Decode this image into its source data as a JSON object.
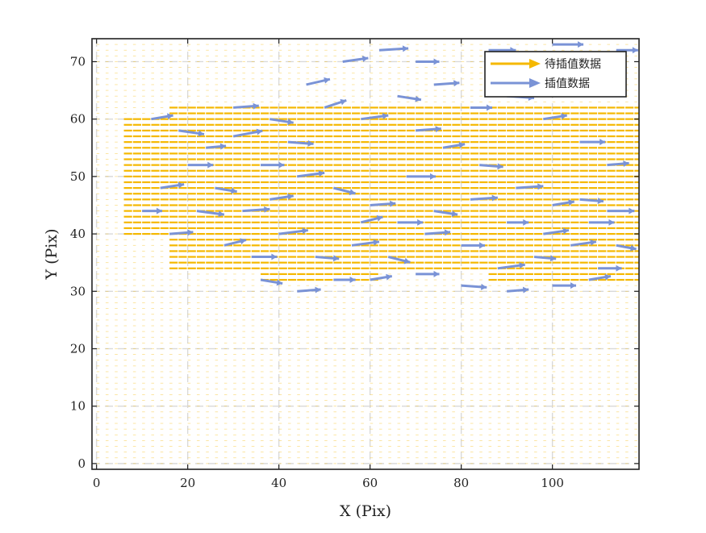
{
  "chart_data": {
    "type": "quiver",
    "xlabel": "X (Pix)",
    "ylabel": "Y (Pix)",
    "xlim": [
      -1,
      119
    ],
    "ylim": [
      -1,
      74
    ],
    "xticks": [
      0,
      20,
      40,
      60,
      80,
      100
    ],
    "yticks": [
      0,
      10,
      20,
      30,
      40,
      50,
      60,
      70
    ],
    "grid": true,
    "legend_position": "top-right",
    "series": [
      {
        "name": "待插值数据",
        "color": "#F5B800",
        "description_region": "dense horizontal field; strong rightward vectors for y≈32-62, x≈6-118; faint short vectors elsewhere",
        "dense_region": {
          "x": [
            6,
            118
          ],
          "y": [
            32,
            62
          ]
        },
        "dense_u": 1.0,
        "faint_u": 0.35
      },
      {
        "name": "插值数据",
        "color": "#7A93D6",
        "sample_vectors": [
          [
            12,
            60,
            1.2,
            0.2
          ],
          [
            18,
            58,
            1.4,
            -0.2
          ],
          [
            24,
            55,
            1.1,
            0.1
          ],
          [
            30,
            57,
            1.6,
            0.3
          ],
          [
            36,
            52,
            1.3,
            0.0
          ],
          [
            44,
            50,
            1.5,
            0.2
          ],
          [
            52,
            48,
            1.2,
            -0.3
          ],
          [
            60,
            45,
            1.4,
            0.1
          ],
          [
            68,
            50,
            1.6,
            0.0
          ],
          [
            76,
            55,
            1.2,
            0.2
          ],
          [
            84,
            52,
            1.3,
            -0.1
          ],
          [
            92,
            48,
            1.5,
            0.1
          ],
          [
            100,
            45,
            1.2,
            0.2
          ],
          [
            108,
            42,
            1.4,
            0.0
          ],
          [
            114,
            38,
            1.1,
            -0.2
          ],
          [
            16,
            40,
            1.3,
            0.1
          ],
          [
            22,
            44,
            1.5,
            -0.2
          ],
          [
            28,
            38,
            1.2,
            0.3
          ],
          [
            34,
            36,
            1.4,
            0.0
          ],
          [
            40,
            40,
            1.6,
            0.2
          ],
          [
            48,
            36,
            1.3,
            -0.1
          ],
          [
            56,
            38,
            1.5,
            0.2
          ],
          [
            64,
            36,
            1.2,
            -0.3
          ],
          [
            72,
            40,
            1.4,
            0.1
          ],
          [
            80,
            38,
            1.3,
            0.0
          ],
          [
            88,
            34,
            1.5,
            0.2
          ],
          [
            96,
            36,
            1.2,
            -0.1
          ],
          [
            104,
            38,
            1.4,
            0.2
          ],
          [
            110,
            34,
            1.3,
            0.0
          ],
          [
            50,
            62,
            1.2,
            0.4
          ],
          [
            58,
            60,
            1.5,
            0.2
          ],
          [
            66,
            64,
            1.3,
            -0.2
          ],
          [
            74,
            66,
            1.4,
            0.1
          ],
          [
            82,
            62,
            1.2,
            0.0
          ],
          [
            90,
            64,
            1.5,
            -0.1
          ],
          [
            98,
            60,
            1.3,
            0.2
          ],
          [
            106,
            56,
            1.4,
            0.0
          ],
          [
            112,
            52,
            1.2,
            0.1
          ],
          [
            46,
            66,
            1.3,
            0.3
          ],
          [
            54,
            70,
            1.4,
            0.2
          ],
          [
            62,
            72,
            1.6,
            0.1
          ],
          [
            70,
            70,
            1.3,
            0.0
          ],
          [
            86,
            72,
            1.5,
            0.0
          ],
          [
            100,
            73,
            1.7,
            0.0
          ],
          [
            114,
            72,
            1.2,
            0.0
          ],
          [
            20,
            52,
            1.4,
            0.0
          ],
          [
            26,
            48,
            1.2,
            -0.2
          ],
          [
            32,
            44,
            1.5,
            0.1
          ],
          [
            38,
            46,
            1.3,
            0.2
          ],
          [
            42,
            56,
            1.4,
            -0.1
          ],
          [
            58,
            42,
            1.2,
            0.3
          ],
          [
            66,
            42,
            1.4,
            0.0
          ],
          [
            74,
            44,
            1.3,
            -0.2
          ],
          [
            82,
            46,
            1.5,
            0.1
          ],
          [
            90,
            42,
            1.2,
            0.0
          ],
          [
            98,
            40,
            1.4,
            0.2
          ],
          [
            106,
            46,
            1.3,
            -0.1
          ],
          [
            112,
            44,
            1.5,
            0.0
          ],
          [
            60,
            32,
            1.2,
            0.2
          ],
          [
            70,
            33,
            1.3,
            0.0
          ],
          [
            80,
            31,
            1.4,
            -0.1
          ],
          [
            90,
            30,
            1.2,
            0.1
          ],
          [
            100,
            31,
            1.3,
            0.0
          ],
          [
            108,
            32,
            1.2,
            0.2
          ],
          [
            14,
            48,
            1.3,
            0.2
          ],
          [
            10,
            44,
            1.1,
            0.0
          ],
          [
            36,
            32,
            1.2,
            -0.2
          ],
          [
            44,
            30,
            1.3,
            0.1
          ],
          [
            52,
            32,
            1.2,
            0.0
          ],
          [
            30,
            62,
            1.4,
            0.1
          ],
          [
            38,
            60,
            1.3,
            -0.2
          ],
          [
            70,
            58,
            1.4,
            0.1
          ]
        ]
      }
    ]
  }
}
